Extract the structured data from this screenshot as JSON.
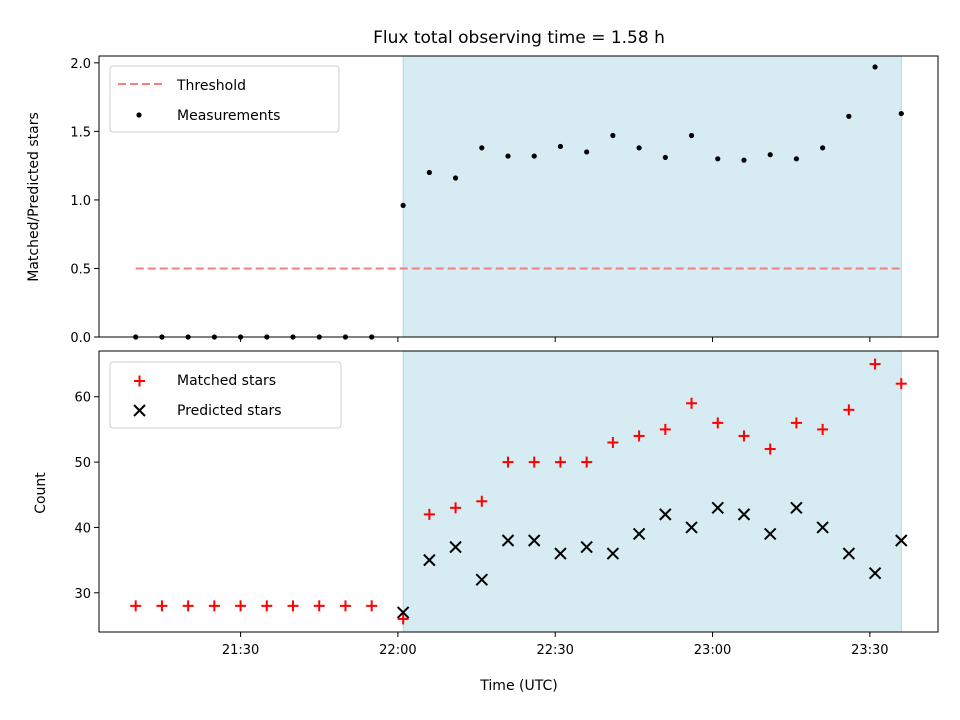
{
  "figure": {
    "title": "Flux total observing time = 1.58 h",
    "xlabel": "Time (UTC)"
  },
  "colors": {
    "threshold": "#f08080",
    "matched": "#ff0000",
    "predicted": "#000000",
    "measurement": "#000000",
    "shade": "#add8e6"
  },
  "chart_data": [
    {
      "type": "scatter",
      "ylabel": "Matched/Predicted stars",
      "ylim": [
        0,
        2.05
      ],
      "yticks": [
        0.0,
        0.5,
        1.0,
        1.5,
        2.0
      ],
      "ytick_labels": [
        "0.0",
        "0.5",
        "1.0",
        "1.5",
        "2.0"
      ],
      "legend_position": "upper-left",
      "shaded_interval": [
        "22:01",
        "23:36"
      ],
      "threshold": {
        "name": "Threshold",
        "y": 0.5,
        "x_start": "21:10",
        "x_end": "23:36"
      },
      "series": [
        {
          "name": "Measurements",
          "x": [
            "21:10",
            "21:15",
            "21:20",
            "21:25",
            "21:30",
            "21:35",
            "21:40",
            "21:45",
            "21:50",
            "21:55",
            "22:01",
            "22:06",
            "22:11",
            "22:16",
            "22:21",
            "22:26",
            "22:31",
            "22:36",
            "22:41",
            "22:46",
            "22:51",
            "22:56",
            "23:01",
            "23:06",
            "23:11",
            "23:16",
            "23:21",
            "23:26",
            "23:31",
            "23:36"
          ],
          "y": [
            0,
            0,
            0,
            0,
            0,
            0,
            0,
            0,
            0,
            0,
            0.96,
            1.2,
            1.16,
            1.38,
            1.32,
            1.32,
            1.39,
            1.35,
            1.47,
            1.38,
            1.31,
            1.47,
            1.3,
            1.29,
            1.33,
            1.3,
            1.38,
            1.61,
            1.97,
            1.63
          ]
        }
      ]
    },
    {
      "type": "scatter",
      "ylabel": "Count",
      "ylim": [
        24,
        67
      ],
      "yticks": [
        30,
        40,
        50,
        60
      ],
      "ytick_labels": [
        "30",
        "40",
        "50",
        "60"
      ],
      "xticks": [
        "21:30",
        "22:00",
        "22:30",
        "23:00",
        "23:30"
      ],
      "xlim": [
        "21:03",
        "23:43"
      ],
      "legend_position": "upper-left",
      "shaded_interval": [
        "22:01",
        "23:36"
      ],
      "series": [
        {
          "name": "Matched stars",
          "marker": "plus",
          "x": [
            "21:10",
            "21:15",
            "21:20",
            "21:25",
            "21:30",
            "21:35",
            "21:40",
            "21:45",
            "21:50",
            "21:55",
            "22:01",
            "22:06",
            "22:11",
            "22:16",
            "22:21",
            "22:26",
            "22:31",
            "22:36",
            "22:41",
            "22:46",
            "22:51",
            "22:56",
            "23:01",
            "23:06",
            "23:11",
            "23:16",
            "23:21",
            "23:26",
            "23:31",
            "23:36"
          ],
          "y": [
            28,
            28,
            28,
            28,
            28,
            28,
            28,
            28,
            28,
            28,
            26,
            42,
            43,
            44,
            50,
            50,
            50,
            50,
            53,
            54,
            55,
            59,
            56,
            54,
            52,
            56,
            55,
            58,
            65,
            62
          ]
        },
        {
          "name": "Predicted stars",
          "marker": "x",
          "x": [
            "22:01",
            "22:06",
            "22:11",
            "22:16",
            "22:21",
            "22:26",
            "22:31",
            "22:36",
            "22:41",
            "22:46",
            "22:51",
            "22:56",
            "23:01",
            "23:06",
            "23:11",
            "23:16",
            "23:21",
            "23:26",
            "23:31",
            "23:36"
          ],
          "y": [
            27,
            35,
            37,
            32,
            38,
            38,
            36,
            37,
            36,
            39,
            42,
            40,
            43,
            42,
            39,
            43,
            40,
            36,
            33,
            38
          ]
        }
      ]
    }
  ]
}
